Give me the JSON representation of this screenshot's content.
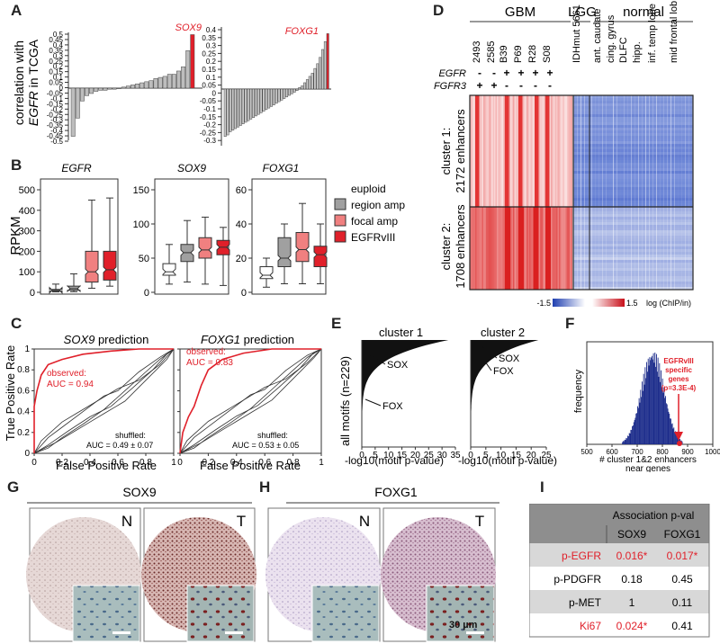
{
  "panel_labels": {
    "A": "A",
    "B": "B",
    "C": "C",
    "D": "D",
    "E": "E",
    "F": "F",
    "G": "G",
    "H": "H",
    "I": "I"
  },
  "panelA": {
    "ylabel_line1": "correlation with",
    "ylabel_line2_gene": "EGFR",
    "ylabel_line2_rest": " in TCGA",
    "highlight_left": "SOX9",
    "highlight_right": "FOXG1",
    "ticks_left": [
      "0.5",
      "0.45",
      "0.4",
      "0.35",
      "0.3",
      "0.25",
      "0.2",
      "0.15",
      "0.1",
      "0.05",
      "0",
      "-0.05",
      "-0.1",
      "-0.15",
      "-0.2",
      "-0.25",
      "-0.3",
      "-0.35",
      "-0.4",
      "-0.45",
      "-0.5"
    ],
    "ticks_right": [
      "0.4",
      "0.35",
      "0.3",
      "0.25",
      "0.2",
      "0.15",
      "0.1",
      "0.05",
      "0",
      "-0.05",
      "-0.1",
      "-0.15",
      "-0.2",
      "-0.25",
      "-0.3"
    ]
  },
  "panelB": {
    "ylabel": "RPKM",
    "titles": [
      "EGFR",
      "SOX9",
      "FOXG1"
    ],
    "ticks1": [
      "500",
      "400",
      "300",
      "200",
      "100",
      "0"
    ],
    "ticks2": [
      "150",
      "100",
      "50",
      "0"
    ],
    "ticks3": [
      "60",
      "40",
      "20",
      "0"
    ],
    "legend_title": "euploid",
    "legend": [
      "region amp",
      "focal amp",
      "EGFRvIII"
    ]
  },
  "panelC": {
    "ylabel": "True Positive Rate",
    "xlabel": "False Positive Rate",
    "title1_gene": "SOX9",
    "title2_gene": "FOXG1",
    "title_suffix": " prediction",
    "yticks": [
      "1",
      "0.8",
      "0.6",
      "0.4",
      "0.2",
      "0"
    ],
    "xticks": [
      "0",
      "0.2",
      "0.4",
      "0.6",
      "0.8",
      "1"
    ],
    "obs_label": "observed:",
    "auc1": "AUC = 0.94",
    "auc2": "AUC = 0.83",
    "shuffled_label": "shuffled:",
    "shuf1": "AUC = 0.49 ± 0.07",
    "shuf2": "AUC = 0.53 ± 0.05"
  },
  "panelD": {
    "group_headers": [
      "GBM",
      "LGG",
      "normal"
    ],
    "samples": [
      "2493",
      "2585",
      "B39",
      "P69",
      "R28",
      "S08",
      "IDHmut 5661",
      "ant. caudate",
      "cing. gyrus",
      "DLFC",
      "hipp.",
      "inf. temp lobe",
      "mid frontal lob"
    ],
    "egfr_label": "EGFR",
    "fgfr3_label": "FGFR3",
    "egfr_status": [
      "-",
      "-",
      "+",
      "+",
      "+",
      "+"
    ],
    "fgfr3_status": [
      "+",
      "+",
      "-",
      "-",
      "-",
      "-"
    ],
    "cluster1_line1": "cluster 1:",
    "cluster1_line2": "2172 enhancers",
    "cluster2_line1": "cluster 2:",
    "cluster2_line2": "1708 enhancers",
    "scale_min": "-1.5",
    "scale_max": "1.5",
    "scale_label": "log (ChIP/in)"
  },
  "panelE": {
    "title1": "cluster 1",
    "title2": "cluster 2",
    "ylabel": "all motifs (n=229)",
    "xlabel": "-log10(motif p-value)",
    "ticks1": [
      "0",
      "5",
      "10",
      "15",
      "20",
      "25",
      "30",
      "35"
    ],
    "ticks2": [
      "0",
      "5",
      "10",
      "15",
      "20",
      "25"
    ],
    "ann1": [
      "SOX",
      "FOX"
    ],
    "ann2": [
      "SOX",
      "FOX"
    ]
  },
  "panelF": {
    "ylabel": "frequency",
    "xlabel_line1": "# cluster 1&2 enhancers",
    "xlabel_line2": "near genes",
    "xticks": [
      "500",
      "600",
      "700",
      "800",
      "900",
      "1000"
    ],
    "annotation": [
      "EGFRvIII",
      "specific",
      "genes",
      "(p=3.3E-4)"
    ]
  },
  "panelG": {
    "title": "SOX9",
    "n": "N",
    "t": "T"
  },
  "panelH": {
    "title": "FOXG1",
    "n": "N",
    "t": "T",
    "scalebar": "30 µm"
  },
  "panelI": {
    "header": "Association p-val",
    "cols": [
      "SOX9",
      "FOXG1"
    ],
    "rows": [
      {
        "name": "p-EGFR",
        "sox9": "0.016*",
        "foxg1": "0.017*"
      },
      {
        "name": "p-PDGFR",
        "sox9": "0.18",
        "foxg1": "0.45"
      },
      {
        "name": "p-MET",
        "sox9": "1",
        "foxg1": "0.11"
      },
      {
        "name": "Ki67",
        "sox9": "0.024*",
        "foxg1": "0.41"
      }
    ]
  },
  "colors": {
    "red": "#e0202a",
    "pink": "#f08080",
    "grey": "#a0a0a0",
    "navy": "#1a2a8a",
    "heat_blue": "#4060c0",
    "heat_red": "#e02020"
  }
}
